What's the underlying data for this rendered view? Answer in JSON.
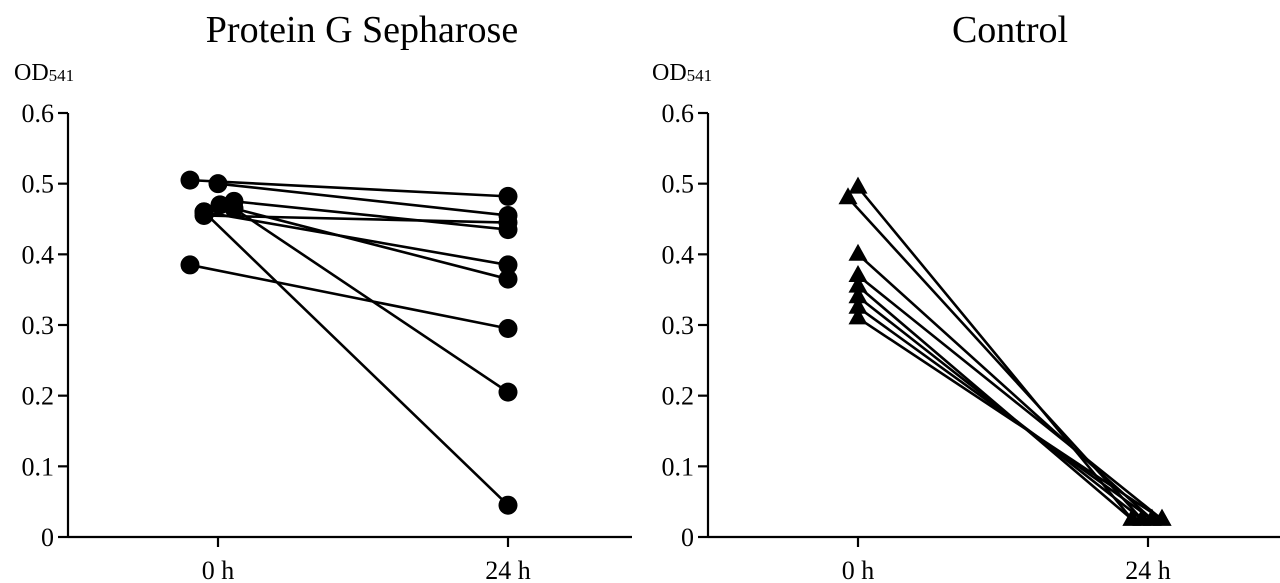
{
  "chart_data": [
    {
      "type": "line",
      "title": "Protein G Sepharose",
      "ylabel_main": "OD",
      "ylabel_sub": "541",
      "categories": [
        "0 h",
        "24 h"
      ],
      "ylim": [
        0,
        0.6
      ],
      "yticks": [
        "0",
        "0.1",
        "0.2",
        "0.3",
        "0.4",
        "0.5",
        "0.6"
      ],
      "marker": "circle",
      "series": [
        {
          "values": [
            0.505,
            0.482
          ]
        },
        {
          "values": [
            0.5,
            0.455
          ]
        },
        {
          "values": [
            0.475,
            0.435
          ]
        },
        {
          "values": [
            0.455,
            0.445
          ]
        },
        {
          "values": [
            0.46,
            0.385
          ]
        },
        {
          "values": [
            0.47,
            0.365
          ]
        },
        {
          "values": [
            0.465,
            0.205
          ]
        },
        {
          "values": [
            0.46,
            0.045
          ]
        },
        {
          "values": [
            0.385,
            0.295
          ]
        }
      ]
    },
    {
      "type": "line",
      "title": "Control",
      "ylabel_main": "OD",
      "ylabel_sub": "541",
      "categories": [
        "0 h",
        "24 h"
      ],
      "ylim": [
        0,
        0.6
      ],
      "yticks": [
        "0",
        "0.1",
        "0.2",
        "0.3",
        "0.4",
        "0.5",
        "0.6"
      ],
      "marker": "triangle",
      "series": [
        {
          "values": [
            0.495,
            0.025
          ]
        },
        {
          "values": [
            0.48,
            0.025
          ]
        },
        {
          "values": [
            0.4,
            0.025
          ]
        },
        {
          "values": [
            0.37,
            0.025
          ]
        },
        {
          "values": [
            0.355,
            0.025
          ]
        },
        {
          "values": [
            0.34,
            0.025
          ]
        },
        {
          "values": [
            0.325,
            0.025
          ]
        },
        {
          "values": [
            0.31,
            0.025
          ]
        }
      ]
    }
  ]
}
